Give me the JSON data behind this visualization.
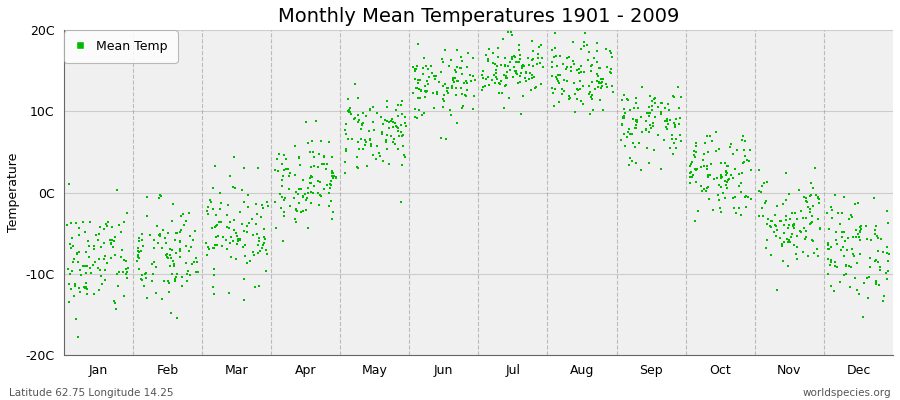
{
  "title": "Monthly Mean Temperatures 1901 - 2009",
  "ylabel": "Temperature",
  "subtitle_left": "Latitude 62.75 Longitude 14.25",
  "subtitle_right": "worldspecies.org",
  "ylim": [
    -20,
    20
  ],
  "ytick_labels": [
    "20C",
    "10C",
    "0C",
    "-10C",
    "-20C"
  ],
  "ytick_vals": [
    20,
    10,
    0,
    -10,
    -20
  ],
  "months": [
    "Jan",
    "Feb",
    "Mar",
    "Apr",
    "May",
    "Jun",
    "Jul",
    "Aug",
    "Sep",
    "Oct",
    "Nov",
    "Dec"
  ],
  "monthly_means": [
    -8.5,
    -8.0,
    -4.5,
    1.5,
    7.5,
    13.0,
    15.5,
    14.0,
    8.5,
    2.5,
    -3.5,
    -7.0
  ],
  "monthly_stds": [
    3.5,
    3.5,
    3.2,
    2.8,
    2.5,
    2.2,
    2.0,
    2.2,
    2.5,
    2.8,
    3.0,
    3.2
  ],
  "n_years": 109,
  "dot_color": "#00BB00",
  "dot_size": 3,
  "plot_bg_color": "#FFFFFF",
  "plot_area_color": "#F0F0F0",
  "grid_color": "#999999",
  "legend_label": "Mean Temp",
  "title_fontsize": 14,
  "label_fontsize": 9,
  "tick_fontsize": 9,
  "figsize": [
    9.0,
    4.0
  ],
  "dpi": 100
}
